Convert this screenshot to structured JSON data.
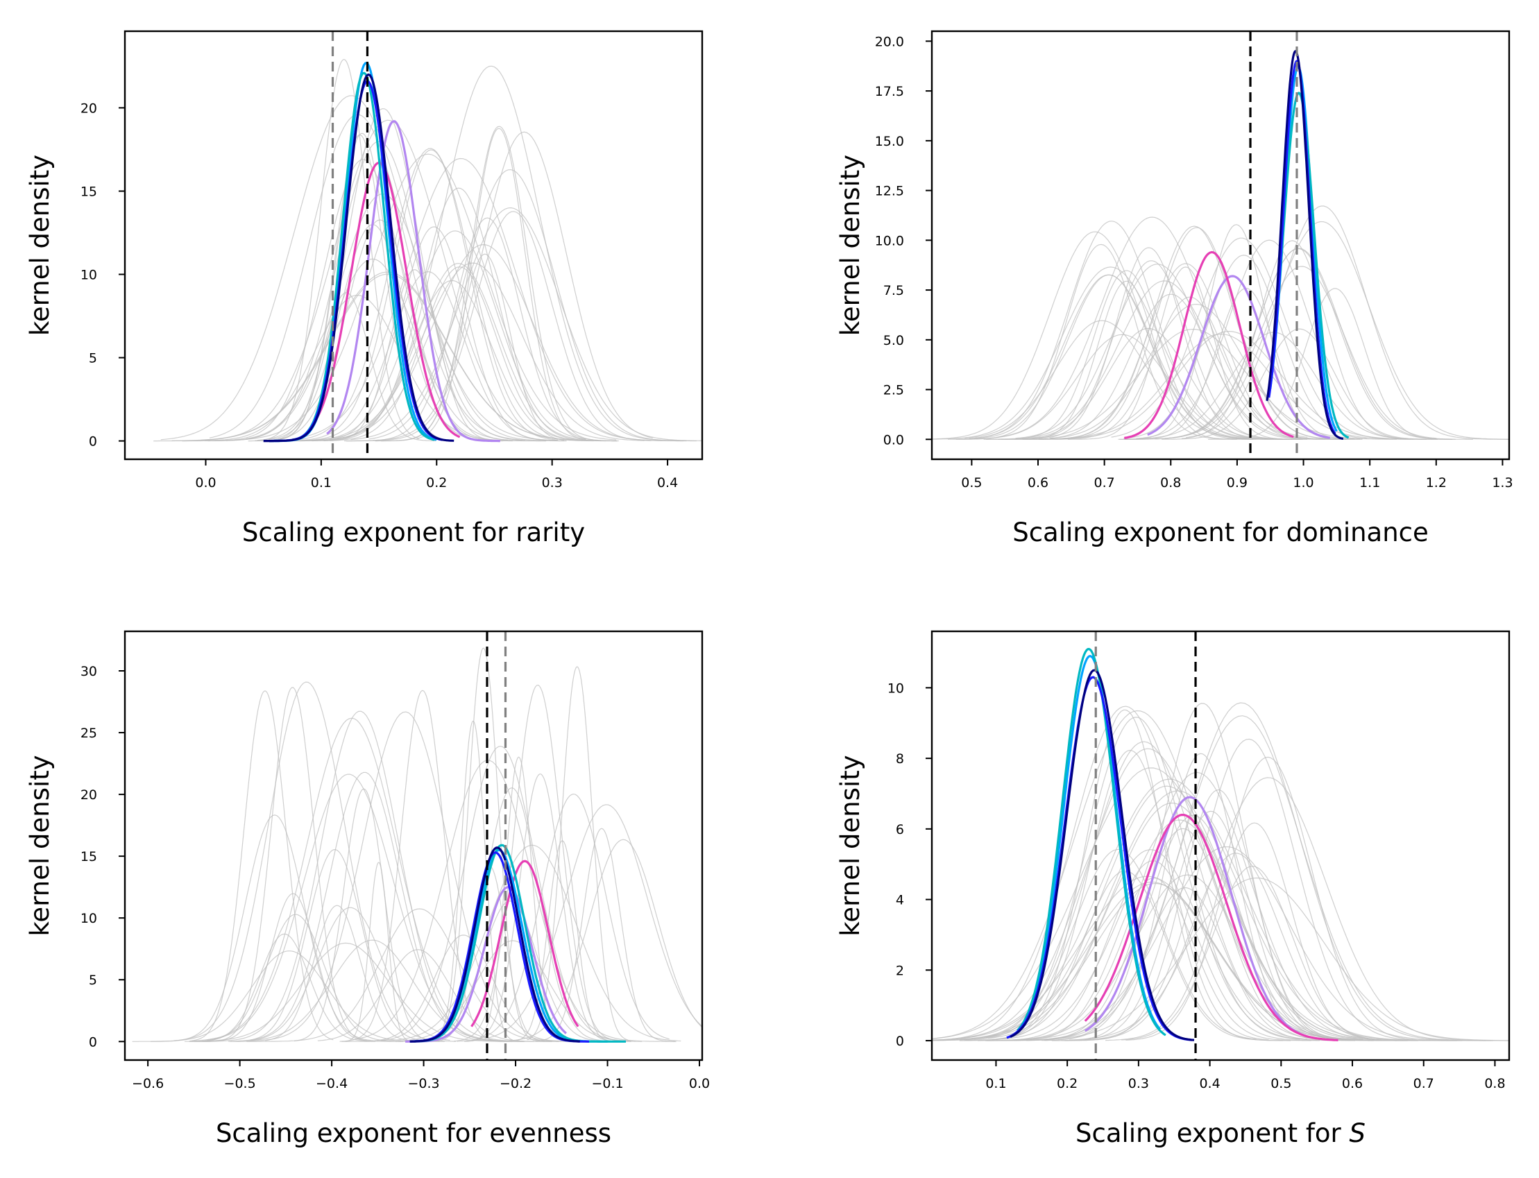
{
  "chart_data": [
    {
      "type": "line",
      "xlabel": "Scaling exponent for rarity",
      "ylabel": "kernel density",
      "xlim": [
        -0.07,
        0.43
      ],
      "ylim": [
        -1.1,
        24.6
      ],
      "xticks": [
        0.0,
        0.1,
        0.2,
        0.3,
        0.4
      ],
      "yticks": [
        0,
        5,
        10,
        15,
        20
      ],
      "xtick_labels": [
        "0.0",
        "0.1",
        "0.2",
        "0.3",
        "0.4"
      ],
      "ytick_labels": [
        "0",
        "5",
        "10",
        "15",
        "20"
      ],
      "vlines": [
        {
          "x": 0.11,
          "color": "#808080"
        },
        {
          "x": 0.14,
          "color": "#000000"
        }
      ],
      "grid": false,
      "background_curves": {
        "count": 40,
        "color": "#bdbdbd",
        "mean_range": [
          0.11,
          0.28
        ],
        "sd_range": [
          0.02,
          0.05
        ],
        "peak_range": [
          8,
          23
        ],
        "seed": 11
      },
      "series": [
        {
          "color": "#b286f0",
          "mean": 0.163,
          "sd": 0.021,
          "peak": 19.2,
          "x_range": [
            0.105,
            0.255
          ]
        },
        {
          "color": "#e63fb4",
          "mean": 0.15,
          "sd": 0.024,
          "peak": 16.7,
          "x_range": [
            0.095,
            0.22
          ]
        },
        {
          "color": "#00a4ff",
          "mean": 0.139,
          "sd": 0.018,
          "peak": 22.7,
          "x_range": [
            0.06,
            0.2
          ]
        },
        {
          "color": "#00b8c2",
          "mean": 0.137,
          "sd": 0.018,
          "peak": 22.1,
          "x_range": [
            0.055,
            0.198
          ]
        },
        {
          "color": "#1a1aff",
          "mean": 0.14,
          "sd": 0.019,
          "peak": 21.6,
          "x_range": [
            0.055,
            0.205
          ]
        },
        {
          "color": "#000080",
          "mean": 0.141,
          "sd": 0.019,
          "peak": 22.0,
          "x_range": [
            0.05,
            0.215
          ]
        }
      ]
    },
    {
      "type": "line",
      "xlabel": "Scaling exponent for dominance",
      "ylabel": "kernel density",
      "xlim": [
        0.44,
        1.31
      ],
      "ylim": [
        -1.0,
        20.5
      ],
      "xticks": [
        0.5,
        0.6,
        0.7,
        0.8,
        0.9,
        1.0,
        1.1,
        1.2,
        1.3
      ],
      "yticks": [
        0.0,
        2.5,
        5.0,
        7.5,
        10.0,
        12.5,
        15.0,
        17.5,
        20.0
      ],
      "xtick_labels": [
        "0.5",
        "0.6",
        "0.7",
        "0.8",
        "0.9",
        "1.0",
        "1.1",
        "1.2",
        "1.3"
      ],
      "ytick_labels": [
        "0.0",
        "2.5",
        "5.0",
        "7.5",
        "10.0",
        "12.5",
        "15.0",
        "17.5",
        "20.0"
      ],
      "vlines": [
        {
          "x": 0.92,
          "color": "#000000"
        },
        {
          "x": 0.99,
          "color": "#808080"
        }
      ],
      "grid": false,
      "background_curves": {
        "count": 40,
        "color": "#bdbdbd",
        "mean_range": [
          0.68,
          1.05
        ],
        "sd_range": [
          0.04,
          0.08
        ],
        "peak_range": [
          5,
          12
        ],
        "seed": 23
      },
      "series": [
        {
          "color": "#b286f0",
          "mean": 0.893,
          "sd": 0.048,
          "peak": 8.2,
          "x_range": [
            0.765,
            1.04
          ]
        },
        {
          "color": "#e63fb4",
          "mean": 0.862,
          "sd": 0.042,
          "peak": 9.4,
          "x_range": [
            0.73,
            0.985
          ]
        },
        {
          "color": "#00a4ff",
          "mean": 0.992,
          "sd": 0.021,
          "peak": 18.7,
          "x_range": [
            0.95,
            1.05
          ]
        },
        {
          "color": "#00b8c2",
          "mean": 0.993,
          "sd": 0.023,
          "peak": 17.4,
          "x_range": [
            0.955,
            1.068
          ]
        },
        {
          "color": "#1a1aff",
          "mean": 0.99,
          "sd": 0.02,
          "peak": 19.0,
          "x_range": [
            0.948,
            1.048
          ]
        },
        {
          "color": "#000080",
          "mean": 0.988,
          "sd": 0.02,
          "peak": 19.5,
          "x_range": [
            0.945,
            1.06
          ]
        }
      ]
    },
    {
      "type": "line",
      "xlabel": "Scaling exponent for evenness",
      "ylabel": "kernel density",
      "xlim": [
        -0.625,
        0.003
      ],
      "ylim": [
        -1.5,
        33.2
      ],
      "xticks": [
        -0.6,
        -0.5,
        -0.4,
        -0.3,
        -0.2,
        -0.1,
        0.0
      ],
      "yticks": [
        0,
        5,
        10,
        15,
        20,
        25,
        30
      ],
      "xtick_labels": [
        "−0.6",
        "−0.5",
        "−0.4",
        "−0.3",
        "−0.2",
        "−0.1",
        "0.0"
      ],
      "ytick_labels": [
        "0",
        "5",
        "10",
        "15",
        "20",
        "25",
        "30"
      ],
      "vlines": [
        {
          "x": -0.231,
          "color": "#000000"
        },
        {
          "x": -0.211,
          "color": "#808080"
        }
      ],
      "grid": false,
      "background_curves": {
        "count": 42,
        "color": "#bdbdbd",
        "mean_range": [
          -0.48,
          -0.08
        ],
        "sd_range": [
          0.01,
          0.05
        ],
        "peak_range": [
          7,
          32
        ],
        "seed": 37
      },
      "series": [
        {
          "color": "#b286f0",
          "mean": -0.208,
          "sd": 0.026,
          "peak": 12.5,
          "x_range": [
            -0.32,
            -0.145
          ]
        },
        {
          "color": "#e63fb4",
          "mean": -0.19,
          "sd": 0.026,
          "peak": 14.6,
          "x_range": [
            -0.248,
            -0.132
          ]
        },
        {
          "color": "#00a4ff",
          "mean": -0.218,
          "sd": 0.025,
          "peak": 15.5,
          "x_range": [
            -0.31,
            -0.1
          ]
        },
        {
          "color": "#00b8c2",
          "mean": -0.215,
          "sd": 0.025,
          "peak": 15.9,
          "x_range": [
            -0.31,
            -0.08
          ]
        },
        {
          "color": "#1a1aff",
          "mean": -0.222,
          "sd": 0.024,
          "peak": 15.3,
          "x_range": [
            -0.315,
            -0.12
          ]
        },
        {
          "color": "#000080",
          "mean": -0.22,
          "sd": 0.024,
          "peak": 15.7,
          "x_range": [
            -0.315,
            -0.13
          ]
        }
      ]
    },
    {
      "type": "line",
      "xlabel": "Scaling exponent for ",
      "xlabel_italic": "S",
      "ylabel": "kernel density",
      "xlim": [
        0.01,
        0.82
      ],
      "ylim": [
        -0.55,
        11.6
      ],
      "xticks": [
        0.1,
        0.2,
        0.3,
        0.4,
        0.5,
        0.6,
        0.7,
        0.8
      ],
      "yticks": [
        0,
        2,
        4,
        6,
        8,
        10
      ],
      "xtick_labels": [
        "0.1",
        "0.2",
        "0.3",
        "0.4",
        "0.5",
        "0.6",
        "0.7",
        "0.8"
      ],
      "ytick_labels": [
        "0",
        "2",
        "4",
        "6",
        "8",
        "10"
      ],
      "vlines": [
        {
          "x": 0.24,
          "color": "#808080"
        },
        {
          "x": 0.38,
          "color": "#000000"
        }
      ],
      "grid": false,
      "background_curves": {
        "count": 40,
        "color": "#bdbdbd",
        "mean_range": [
          0.26,
          0.5
        ],
        "sd_range": [
          0.05,
          0.1
        ],
        "peak_range": [
          4,
          9.6
        ],
        "seed": 53
      },
      "series": [
        {
          "color": "#b286f0",
          "mean": 0.372,
          "sd": 0.058,
          "peak": 6.9,
          "x_range": [
            0.225,
            0.535
          ]
        },
        {
          "color": "#e63fb4",
          "mean": 0.362,
          "sd": 0.062,
          "peak": 6.4,
          "x_range": [
            0.225,
            0.58
          ]
        },
        {
          "color": "#00a4ff",
          "mean": 0.232,
          "sd": 0.037,
          "peak": 10.9,
          "x_range": [
            0.125,
            0.33
          ]
        },
        {
          "color": "#00b8c2",
          "mean": 0.23,
          "sd": 0.037,
          "peak": 11.1,
          "x_range": [
            0.13,
            0.338
          ]
        },
        {
          "color": "#1a1aff",
          "mean": 0.236,
          "sd": 0.039,
          "peak": 10.3,
          "x_range": [
            0.115,
            0.375
          ]
        },
        {
          "color": "#000080",
          "mean": 0.238,
          "sd": 0.039,
          "peak": 10.5,
          "x_range": [
            0.12,
            0.378
          ]
        }
      ]
    }
  ]
}
